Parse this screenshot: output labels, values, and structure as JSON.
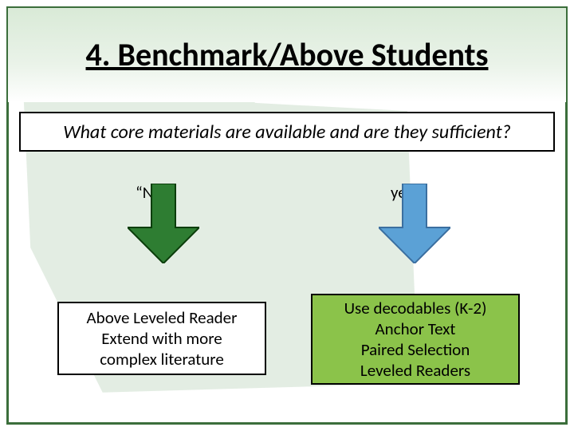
{
  "type": "flowchart",
  "background_color": "#ffffff",
  "frame_border_color": "#3b6e3b",
  "map_fill_color": "#6aa06a",
  "title": {
    "text": "4. Benchmark/Above Students",
    "fontsize": 40,
    "color": "#000000",
    "gradient_top": "#d9ead7",
    "gradient_bottom": "#ffffff",
    "underline": true
  },
  "question": {
    "text": "What core materials are available and are they sufficient?",
    "fontsize": 24,
    "italic": true,
    "border_color": "#000000",
    "background_color": "#ffffff"
  },
  "branches": {
    "no": {
      "label": "“No”",
      "label_fontsize": 21,
      "arrow_fill": "#2e7d32",
      "arrow_stroke": "#0b3d0b",
      "result_lines": [
        "Above Leveled Reader",
        "Extend with more",
        "complex literature"
      ],
      "result_bg": "#ffffff",
      "result_border": "#000000",
      "result_fontsize": 21
    },
    "yes": {
      "label": "yes",
      "label_fontsize": 21,
      "arrow_fill": "#5ba1d6",
      "arrow_stroke": "#3b6fa0",
      "result_lines": [
        "Use decodables (K-2)",
        "Anchor Text",
        "Paired Selection",
        "Leveled Readers"
      ],
      "result_bg": "#8bc34a",
      "result_border": "#000000",
      "result_fontsize": 21
    }
  }
}
